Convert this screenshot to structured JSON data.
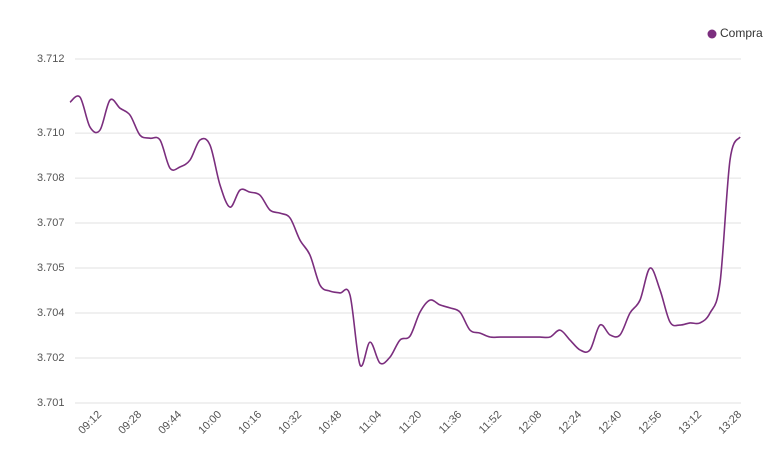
{
  "chart_data": {
    "type": "line",
    "categories": [
      null,
      null,
      null,
      "09:12",
      null,
      null,
      null,
      "09:28",
      null,
      null,
      null,
      "09:44",
      null,
      null,
      null,
      "10:00",
      null,
      null,
      null,
      "10:16",
      null,
      null,
      null,
      "10:32",
      null,
      null,
      null,
      "10:48",
      null,
      null,
      null,
      "11:04",
      null,
      null,
      null,
      "11:20",
      null,
      null,
      null,
      "11:36",
      null,
      null,
      null,
      "11:52",
      null,
      null,
      null,
      "12:08",
      null,
      null,
      null,
      "12:24",
      null,
      null,
      null,
      "12:40",
      null,
      null,
      null,
      "12:56",
      null,
      null,
      null,
      "13:12",
      null,
      null,
      null,
      "13:28"
    ],
    "series": [
      {
        "name": "Compra",
        "color": "#7b2e7e",
        "values": [
          3.71103,
          3.7112,
          3.7102,
          3.7101,
          3.7111,
          3.71083,
          3.7106,
          3.70993,
          3.70983,
          3.70977,
          3.70883,
          3.70887,
          3.7091,
          3.70977,
          3.7096,
          3.70827,
          3.70753,
          3.7081,
          3.70803,
          3.70793,
          3.70743,
          3.70733,
          3.70717,
          3.70643,
          3.70593,
          3.70493,
          3.70473,
          3.70467,
          3.7046,
          3.70227,
          3.70303,
          3.70233,
          3.70253,
          3.7031,
          3.70323,
          3.70403,
          3.70443,
          3.70427,
          3.70417,
          3.70403,
          3.70343,
          3.70333,
          3.7032,
          3.7032,
          3.7032,
          3.7032,
          3.7032,
          3.7032,
          3.7032,
          3.70343,
          3.7031,
          3.70277,
          3.70277,
          3.7036,
          3.70327,
          3.70327,
          3.704,
          3.70443,
          3.7055,
          3.70477,
          3.7037,
          3.7036,
          3.70367,
          3.70367,
          3.704,
          3.705,
          3.7091,
          3.70987
        ]
      }
    ],
    "ylim": [
      3.701,
      3.71247
    ],
    "yticks": [
      3.701,
      {
        "value": 3.7025,
        "label": "3.702"
      },
      3.704,
      {
        "value": 3.7055,
        "label": "3.705"
      },
      3.707,
      {
        "value": 3.7085,
        "label": "3.708"
      },
      {
        "value": 3.71,
        "label": "3.710"
      },
      {
        "value": 3.71247,
        "label": "3.712"
      }
    ],
    "grid": true,
    "legend": "top-right"
  }
}
